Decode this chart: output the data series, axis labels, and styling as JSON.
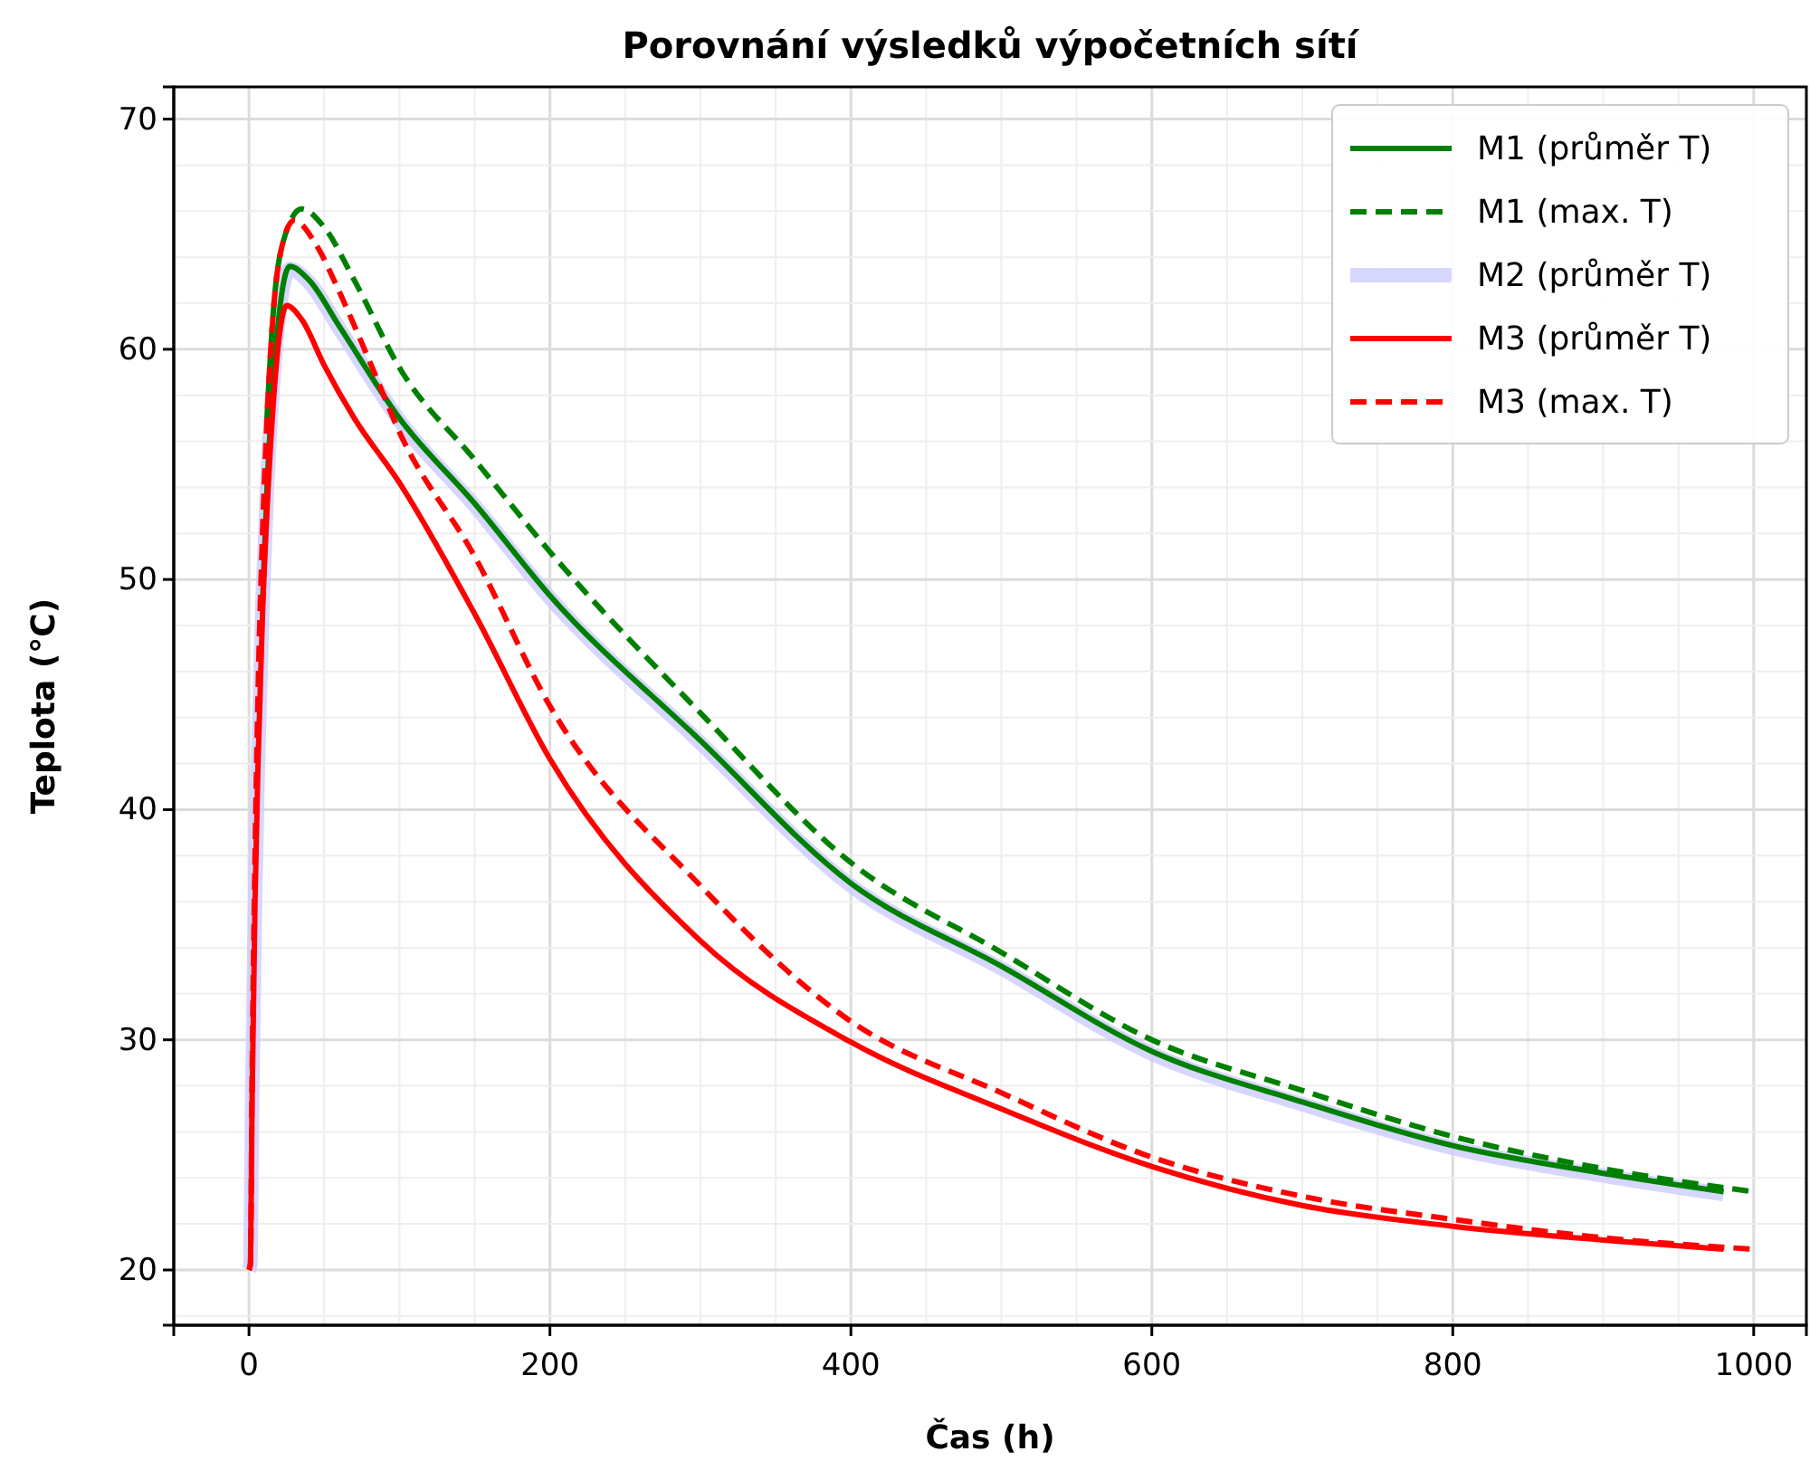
{
  "chart_data": {
    "type": "line",
    "title": "Porovnání výsledků výpočetních sítí",
    "xlabel": "Čas (h)",
    "ylabel": "Teplota (°C)",
    "xlim": [
      -50,
      1035
    ],
    "ylim": [
      17.6,
      71.4
    ],
    "xticks": [
      0,
      200,
      400,
      600,
      800,
      1000
    ],
    "yticks": [
      20,
      30,
      40,
      50,
      60,
      70
    ],
    "grid": true,
    "legend": "top right",
    "series": [
      {
        "name": "M1 (průměr T)",
        "color": "#008000",
        "line_style": "solid",
        "x": [
          9,
          12,
          16,
          20,
          27,
          40,
          60,
          100,
          150,
          200,
          300,
          400,
          500,
          600,
          700,
          800,
          900,
          980
        ],
        "values": [
          49,
          54,
          58.5,
          61.5,
          63.6,
          63,
          61,
          57,
          53.3,
          49.3,
          43,
          36.8,
          33.2,
          29.5,
          27.3,
          25.4,
          24.2,
          23.4
        ]
      },
      {
        "name": "M1 (max. T)",
        "color": "#008000",
        "line_style": "dashed",
        "x": [
          12,
          16,
          22,
          35,
          50,
          70,
          100,
          150,
          200,
          300,
          400,
          500,
          600,
          700,
          800,
          900,
          1000
        ],
        "values": [
          57,
          61.5,
          64.5,
          66.1,
          65.3,
          63,
          59.2,
          55.2,
          51.2,
          44.2,
          37.7,
          33.8,
          30,
          27.8,
          25.8,
          24.4,
          23.4
        ]
      },
      {
        "name": "M2 (průměr T)",
        "color": "#ccccff",
        "line_style": "solid",
        "x": [
          0,
          1,
          2,
          4,
          6,
          9,
          12,
          16,
          20,
          27,
          40,
          60,
          100,
          150,
          200,
          300,
          400,
          500,
          600,
          700,
          800,
          900,
          980
        ],
        "values": [
          20,
          20.3,
          27,
          36,
          42,
          49,
          54,
          58.5,
          61.5,
          63.5,
          62.9,
          60.9,
          56.9,
          53.2,
          49.2,
          42.9,
          36.7,
          33.1,
          29.4,
          27.2,
          25.3,
          24.1,
          23.3
        ]
      },
      {
        "name": "M3 (průměr T)",
        "color": "#ff0000",
        "line_style": "solid",
        "x": [
          0,
          1,
          2,
          4,
          6,
          9,
          12,
          16,
          20,
          25,
          35,
          50,
          70,
          100,
          150,
          200,
          300,
          400,
          500,
          600,
          700,
          800,
          900,
          980
        ],
        "values": [
          20,
          20.3,
          27,
          36,
          42,
          48.5,
          53,
          57.5,
          60.5,
          61.9,
          61.3,
          59.3,
          57,
          54.2,
          48.5,
          42.2,
          34.3,
          29.9,
          27,
          24.5,
          22.8,
          21.9,
          21.3,
          20.9
        ]
      },
      {
        "name": "M3 (max. T)",
        "color": "#ff0000",
        "line_style": "dashed",
        "x": [
          0,
          1,
          2,
          4,
          6,
          9,
          12,
          16,
          22,
          30,
          45,
          60,
          80,
          100,
          150,
          200,
          300,
          400,
          500,
          600,
          700,
          800,
          900,
          1000
        ],
        "values": [
          20,
          20.3,
          28,
          38,
          45,
          52,
          57,
          61.5,
          64.5,
          65.6,
          64.5,
          62.5,
          59.5,
          56.4,
          51,
          44.5,
          36.7,
          30.8,
          27.7,
          24.9,
          23.2,
          22.2,
          21.4,
          20.9
        ]
      }
    ]
  }
}
